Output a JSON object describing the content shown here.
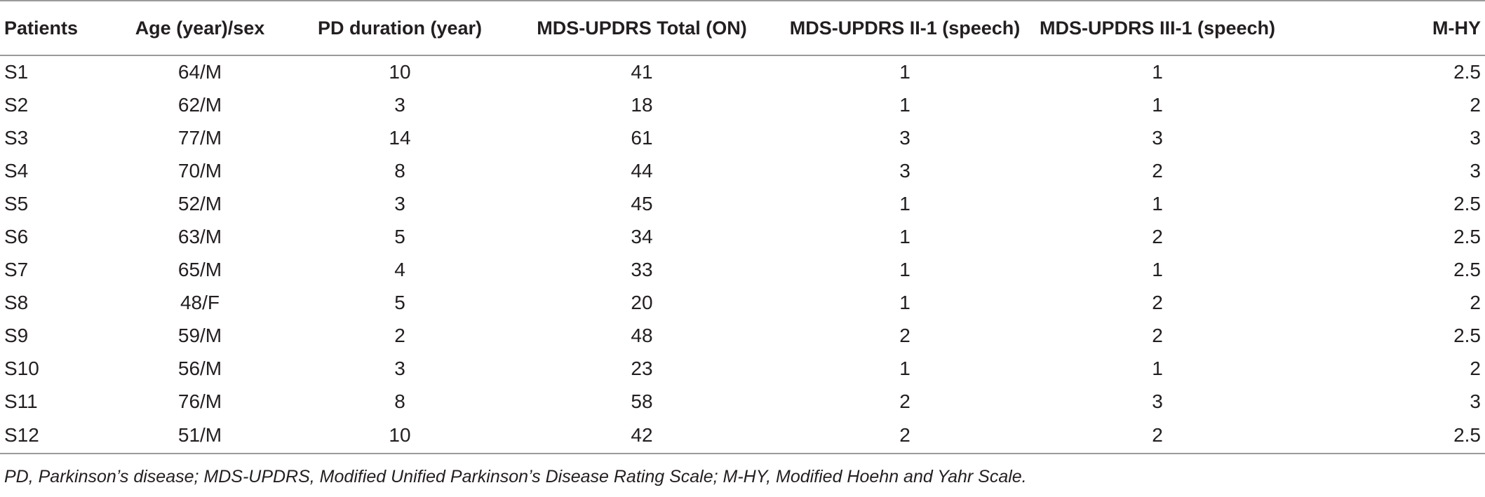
{
  "table": {
    "headers": [
      "Patients",
      "Age (year)/sex",
      "PD duration (year)",
      "MDS-UPDRS Total (ON)",
      "MDS-UPDRS II-1 (speech)",
      "MDS-UPDRS III-1 (speech)",
      "M-HY"
    ],
    "rows": [
      [
        "S1",
        "64/M",
        "10",
        "41",
        "1",
        "1",
        "2.5"
      ],
      [
        "S2",
        "62/M",
        "3",
        "18",
        "1",
        "1",
        "2"
      ],
      [
        "S3",
        "77/M",
        "14",
        "61",
        "3",
        "3",
        "3"
      ],
      [
        "S4",
        "70/M",
        "8",
        "44",
        "3",
        "2",
        "3"
      ],
      [
        "S5",
        "52/M",
        "3",
        "45",
        "1",
        "1",
        "2.5"
      ],
      [
        "S6",
        "63/M",
        "5",
        "34",
        "1",
        "2",
        "2.5"
      ],
      [
        "S7",
        "65/M",
        "4",
        "33",
        "1",
        "1",
        "2.5"
      ],
      [
        "S8",
        "48/F",
        "5",
        "20",
        "1",
        "2",
        "2"
      ],
      [
        "S9",
        "59/M",
        "2",
        "48",
        "2",
        "2",
        "2.5"
      ],
      [
        "S10",
        "56/M",
        "3",
        "23",
        "1",
        "1",
        "2"
      ],
      [
        "S11",
        "76/M",
        "8",
        "58",
        "2",
        "3",
        "3"
      ],
      [
        "S12",
        "51/M",
        "10",
        "42",
        "2",
        "2",
        "2.5"
      ]
    ]
  },
  "footnote": "PD, Parkinson’s disease; MDS-UPDRS, Modified Unified Parkinson’s Disease Rating Scale; M-HY, Modified Hoehn and Yahr Scale."
}
